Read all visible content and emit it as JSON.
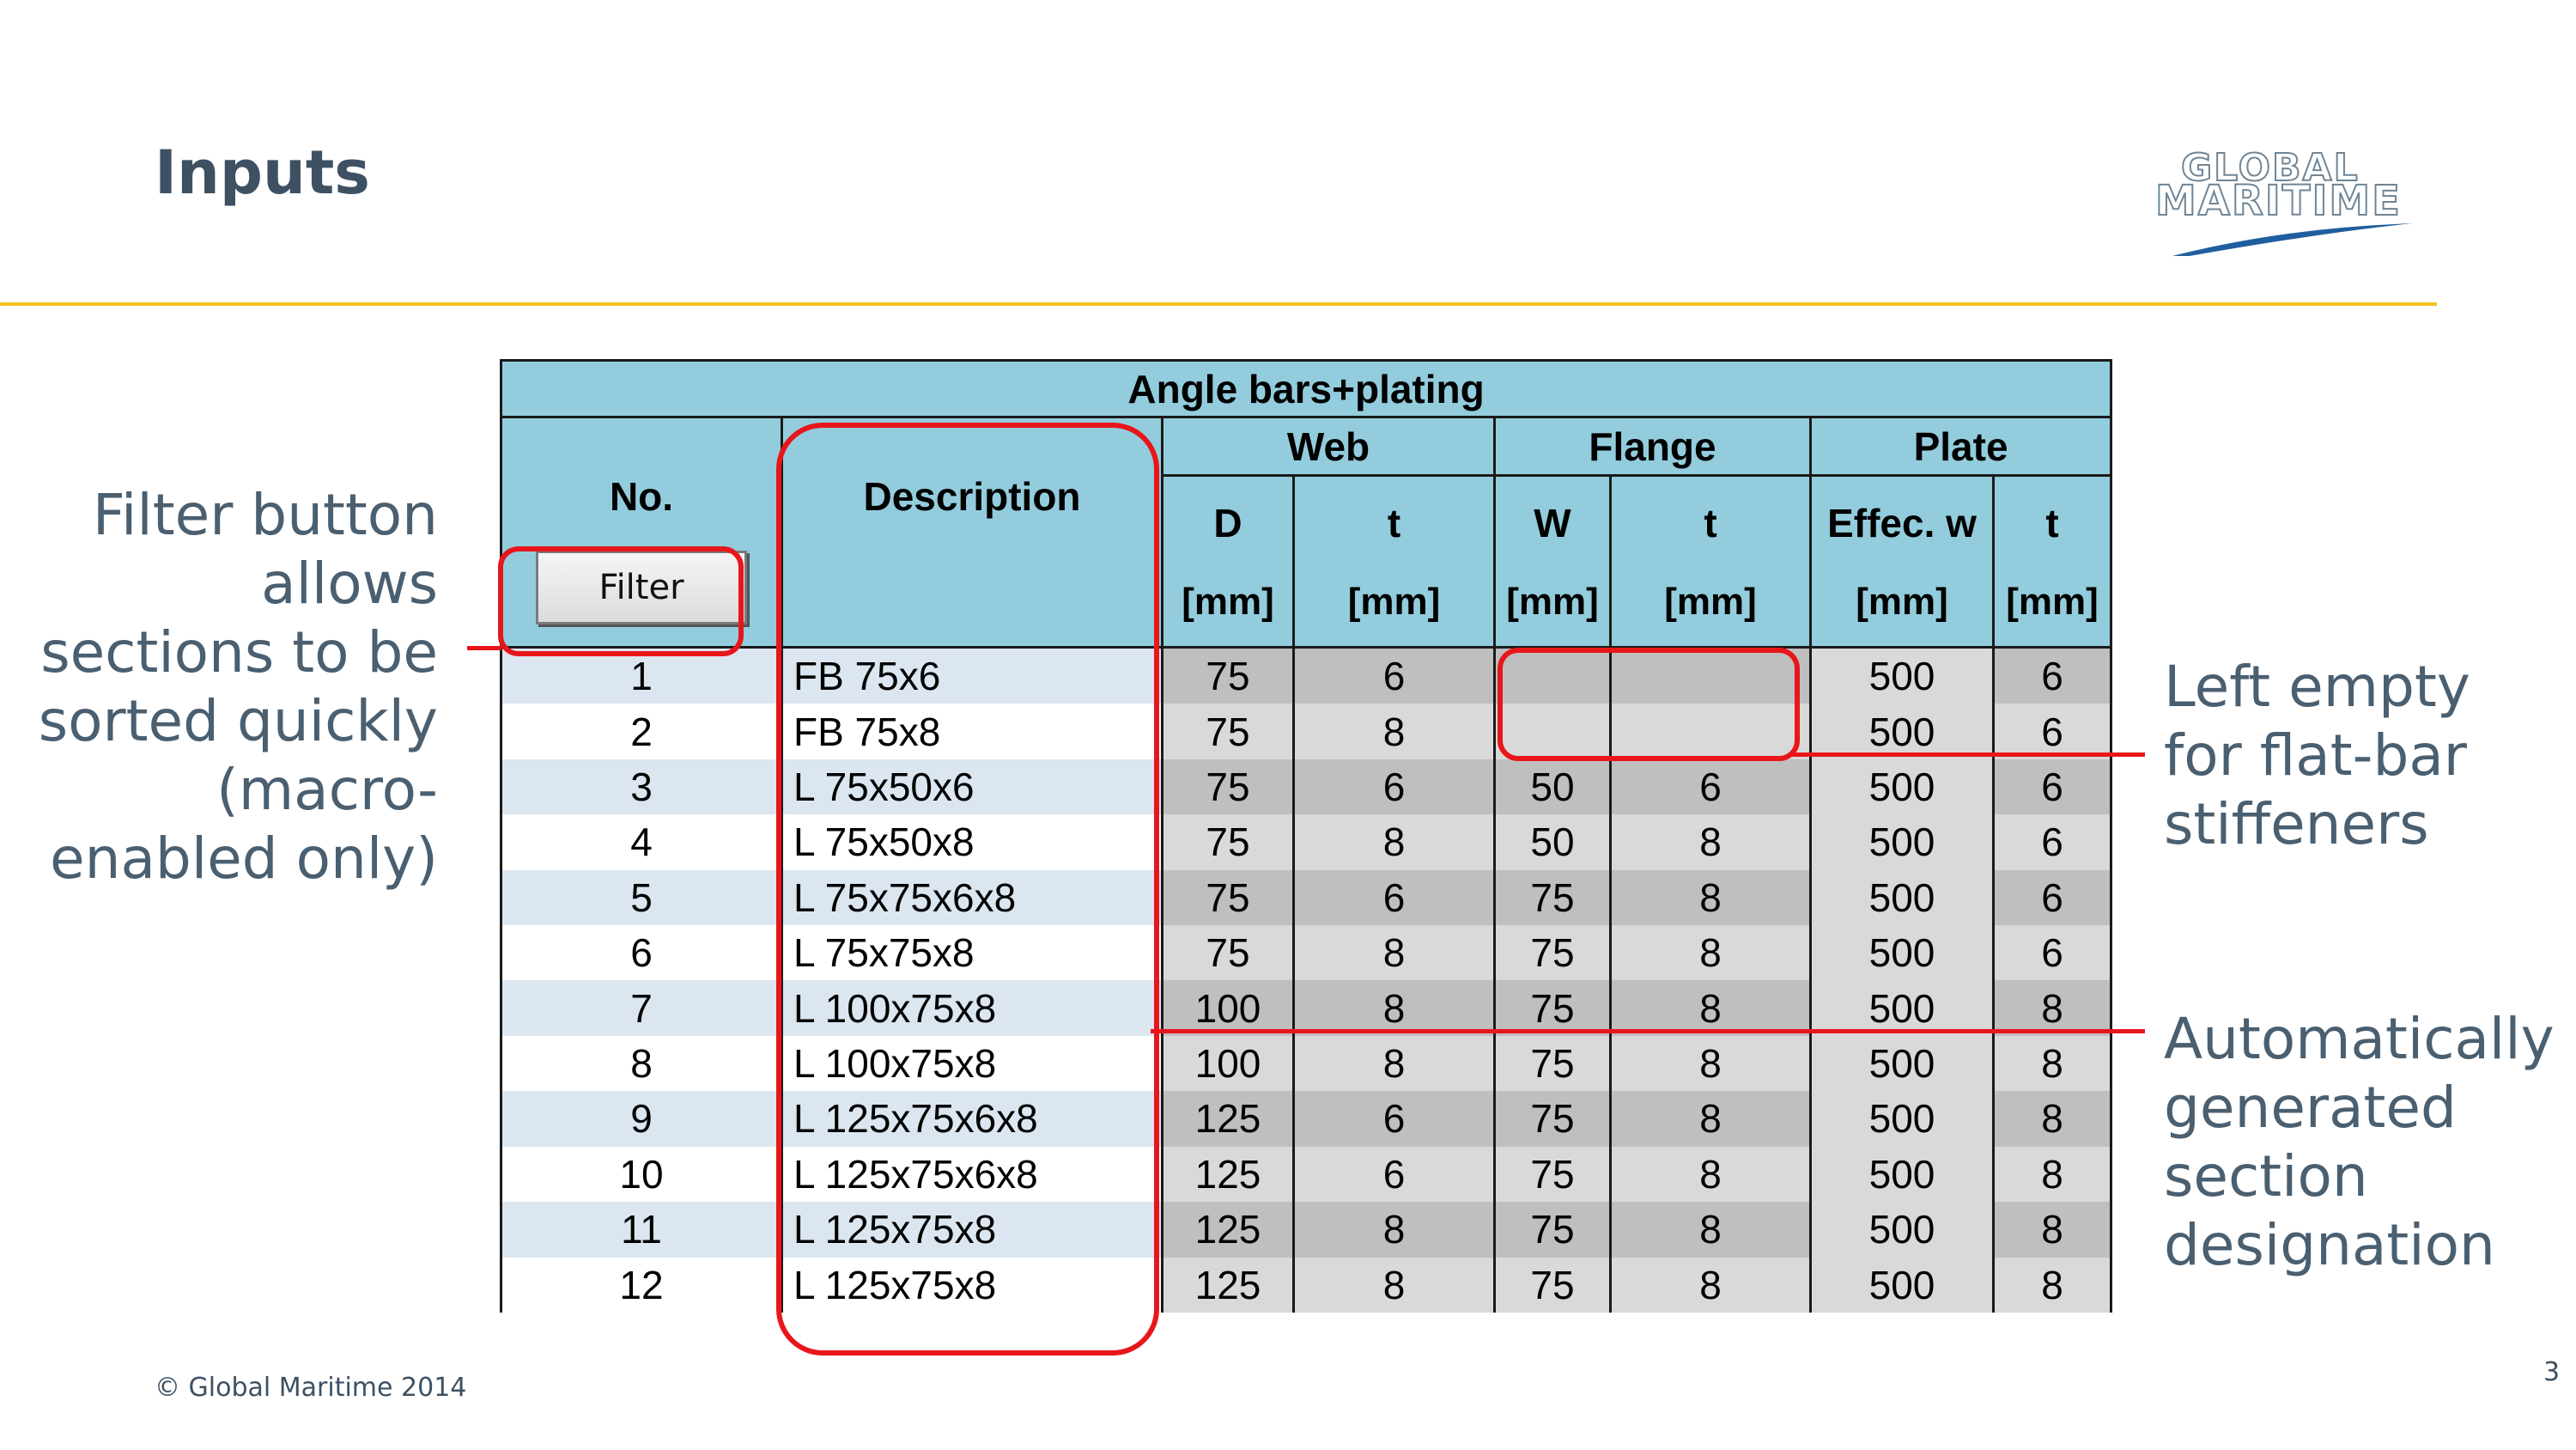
{
  "slide": {
    "title": "Inputs",
    "footer": "© Global Maritime 2014",
    "page_number": "3"
  },
  "logo": {
    "line1": "GLOBAL",
    "line2": "MARITIME"
  },
  "table": {
    "title": "Angle bars+plating",
    "headers": {
      "no": "No.",
      "description": "Description",
      "web": "Web",
      "flange": "Flange",
      "plate": "Plate",
      "web_d": "D",
      "web_t": "t",
      "flange_w": "W",
      "flange_t": "t",
      "plate_effec": "Effec. w",
      "plate_t": "t",
      "unit": "[mm]"
    },
    "filter_label": "Filter",
    "rows": [
      {
        "no": "1",
        "desc": "FB 75x6",
        "d": "75",
        "t": "6",
        "w": "",
        "ft": "",
        "effw": "500",
        "pt": "6"
      },
      {
        "no": "2",
        "desc": "FB 75x8",
        "d": "75",
        "t": "8",
        "w": "",
        "ft": "",
        "effw": "500",
        "pt": "6"
      },
      {
        "no": "3",
        "desc": "L 75x50x6",
        "d": "75",
        "t": "6",
        "w": "50",
        "ft": "6",
        "effw": "500",
        "pt": "6"
      },
      {
        "no": "4",
        "desc": "L 75x50x8",
        "d": "75",
        "t": "8",
        "w": "50",
        "ft": "8",
        "effw": "500",
        "pt": "6"
      },
      {
        "no": "5",
        "desc": "L 75x75x6x8",
        "d": "75",
        "t": "6",
        "w": "75",
        "ft": "8",
        "effw": "500",
        "pt": "6"
      },
      {
        "no": "6",
        "desc": "L 75x75x8",
        "d": "75",
        "t": "8",
        "w": "75",
        "ft": "8",
        "effw": "500",
        "pt": "6"
      },
      {
        "no": "7",
        "desc": "L 100x75x8",
        "d": "100",
        "t": "8",
        "w": "75",
        "ft": "8",
        "effw": "500",
        "pt": "8"
      },
      {
        "no": "8",
        "desc": "L 100x75x8",
        "d": "100",
        "t": "8",
        "w": "75",
        "ft": "8",
        "effw": "500",
        "pt": "8"
      },
      {
        "no": "9",
        "desc": "L 125x75x6x8",
        "d": "125",
        "t": "6",
        "w": "75",
        "ft": "8",
        "effw": "500",
        "pt": "8"
      },
      {
        "no": "10",
        "desc": "L 125x75x6x8",
        "d": "125",
        "t": "6",
        "w": "75",
        "ft": "8",
        "effw": "500",
        "pt": "8"
      },
      {
        "no": "11",
        "desc": "L 125x75x8",
        "d": "125",
        "t": "8",
        "w": "75",
        "ft": "8",
        "effw": "500",
        "pt": "8"
      },
      {
        "no": "12",
        "desc": "L 125x75x8",
        "d": "125",
        "t": "8",
        "w": "75",
        "ft": "8",
        "effw": "500",
        "pt": "8"
      }
    ]
  },
  "callouts": {
    "filter_lines": [
      "Filter button",
      "allows",
      "sections to be",
      "sorted quickly",
      "(macro-",
      "enabled only)"
    ],
    "flatbar_lines": [
      "Left empty",
      "for flat-bar",
      "stiffeners"
    ],
    "auto_lines": [
      "Automatically",
      "generated",
      "section",
      "designation"
    ]
  },
  "colors": {
    "accent_red": "#e8161b",
    "header_blue": "#93cddd",
    "rule_yellow": "#f2c11b",
    "text_slate": "#3d5163"
  }
}
